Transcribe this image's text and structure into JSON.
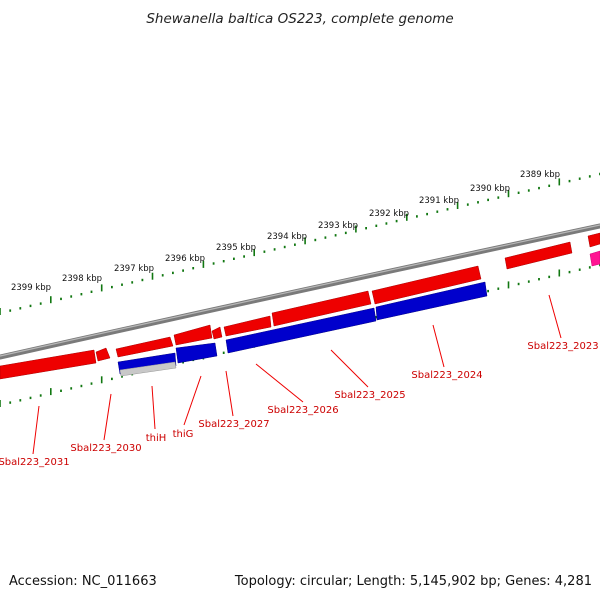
{
  "title": "Shewanella baltica OS223, complete genome",
  "footer": {
    "accession": "Accession: NC_011663",
    "summary": "Topology: circular; Length: 5,145,902 bp; Genes: 4,281"
  },
  "kbp_labels": [
    "2389 kbp",
    "2390 kbp",
    "2391 kbp",
    "2392 kbp",
    "2393 kbp",
    "2394 kbp",
    "2395 kbp",
    "2396 kbp",
    "2397 kbp",
    "2398 kbp",
    "2399 kbp"
  ],
  "gene_labels": [
    "Sbal223_2023",
    "Sbal223_2024",
    "Sbal223_2025",
    "Sbal223_2026",
    "Sbal223_2027",
    "thiG",
    "thiH",
    "Sbal223_2030",
    "Sbal223_2031"
  ],
  "colors": {
    "forward_gene": "#ee0000",
    "reverse_gene": "#0000cc",
    "overlap_feature": "#cccccc",
    "magenta_feature": "#ff1493",
    "backbone": "#808080",
    "tick_marks": "#117711",
    "label_text": "#cc0000"
  }
}
